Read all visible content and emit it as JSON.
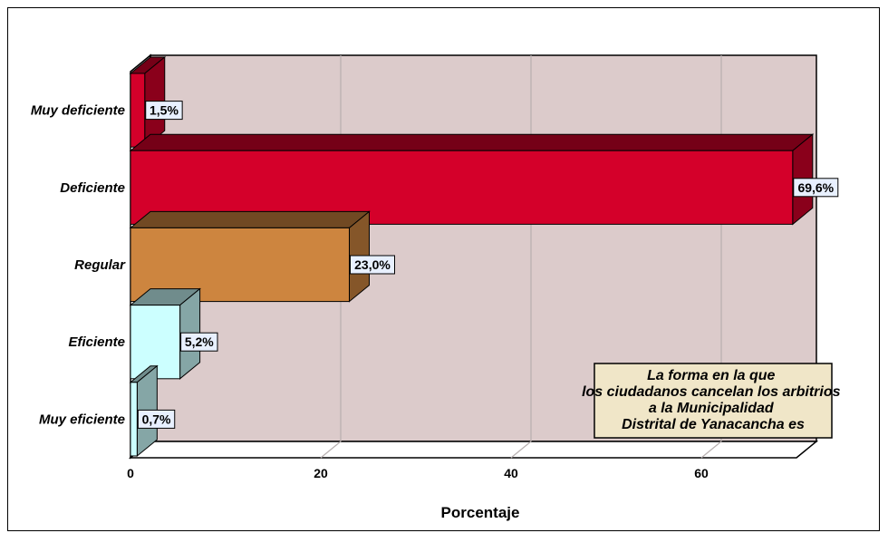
{
  "chart_data": {
    "type": "bar",
    "orientation": "horizontal",
    "style": "3d",
    "categories": [
      "Muy deficiente",
      "Deficiente",
      "Regular",
      "Eficiente",
      "Muy eficiente"
    ],
    "values": [
      1.5,
      69.6,
      23.0,
      5.2,
      0.7
    ],
    "value_labels": [
      "1,5%",
      "69,6%",
      "23,0%",
      "5,2%",
      "0,7%"
    ],
    "bar_colors": [
      "#d4002a",
      "#d4002a",
      "#cd853f",
      "#ccffff",
      "#ccffff"
    ],
    "xlabel": "Porcentaje",
    "ylabel": "",
    "xlim": [
      0,
      70
    ],
    "xticks": [
      0,
      20,
      40,
      60
    ],
    "grid": true,
    "plot_background": "#dccbcb",
    "legend_title": "La forma en la que los ciudadanos cancelan los arbitrios a la Municipalidad Distrital de Yanacancha es",
    "legend_placement": "bottom-right"
  }
}
